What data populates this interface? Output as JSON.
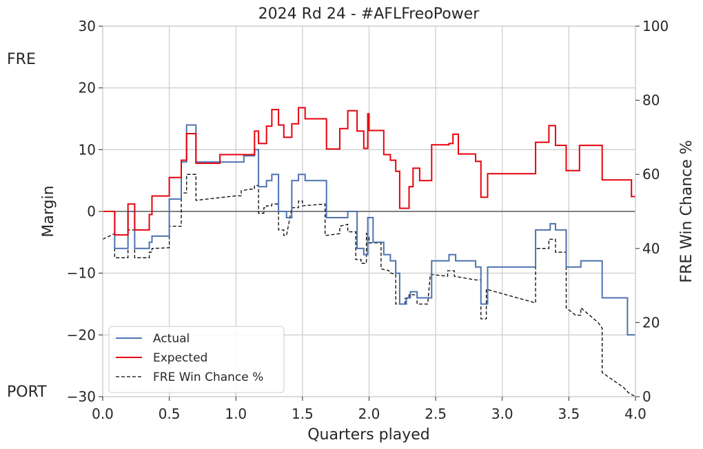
{
  "chart_data": {
    "type": "line",
    "title": "2024 Rd 24 - #AFLFreoPower",
    "xlabel": "Quarters played",
    "ylabel": "Margin",
    "y2label": "FRE Win Chance %",
    "top_team_label": "FRE",
    "bottom_team_label": "PORT",
    "xlim": [
      0,
      4
    ],
    "ylim": [
      -30,
      30
    ],
    "y2lim": [
      0,
      100
    ],
    "x_ticks": [
      "0.0",
      "0.5",
      "1.0",
      "1.5",
      "2.0",
      "2.5",
      "3.0",
      "3.5",
      "4.0"
    ],
    "y_ticks": [
      "30",
      "20",
      "10",
      "0",
      "−10",
      "−20",
      "−30"
    ],
    "y2_ticks": [
      "100",
      "80",
      "60",
      "40",
      "20",
      "0"
    ],
    "grid": true,
    "legend_placement": "lower-left",
    "series": [
      {
        "name": "Actual",
        "axis": "left",
        "style": "step",
        "color": "#4c72b0",
        "points": [
          [
            0,
            0
          ],
          [
            0.09,
            -6
          ],
          [
            0.19,
            0
          ],
          [
            0.24,
            -6
          ],
          [
            0.35,
            -5
          ],
          [
            0.37,
            -4
          ],
          [
            0.5,
            2
          ],
          [
            0.59,
            8
          ],
          [
            0.63,
            14
          ],
          [
            0.7,
            8
          ],
          [
            1.0,
            8
          ],
          [
            1.06,
            9
          ],
          [
            1.14,
            10
          ],
          [
            1.17,
            4
          ],
          [
            1.23,
            5
          ],
          [
            1.27,
            6
          ],
          [
            1.32,
            0
          ],
          [
            1.38,
            -1
          ],
          [
            1.42,
            5
          ],
          [
            1.47,
            6
          ],
          [
            1.52,
            5
          ],
          [
            1.68,
            -1
          ],
          [
            1.84,
            0
          ],
          [
            1.91,
            -6
          ],
          [
            1.96,
            -7
          ],
          [
            1.99,
            -1
          ],
          [
            2.03,
            -5
          ],
          [
            2.11,
            -7
          ],
          [
            2.16,
            -8
          ],
          [
            2.2,
            -10
          ],
          [
            2.23,
            -15
          ],
          [
            2.28,
            -14
          ],
          [
            2.31,
            -13
          ],
          [
            2.36,
            -14
          ],
          [
            2.47,
            -8
          ],
          [
            2.6,
            -7
          ],
          [
            2.65,
            -8
          ],
          [
            2.8,
            -9
          ],
          [
            2.84,
            -15
          ],
          [
            2.89,
            -9
          ],
          [
            3.25,
            -3
          ],
          [
            3.36,
            -2
          ],
          [
            3.4,
            -3
          ],
          [
            3.48,
            -9
          ],
          [
            3.59,
            -8
          ],
          [
            3.75,
            -14
          ],
          [
            3.94,
            -20
          ],
          [
            4.0,
            -20
          ]
        ]
      },
      {
        "name": "Expected",
        "axis": "left",
        "style": "step",
        "color": "#e8000b",
        "points": [
          [
            0,
            0
          ],
          [
            0.09,
            -3.8
          ],
          [
            0.19,
            1.2
          ],
          [
            0.24,
            -3
          ],
          [
            0.35,
            -0.5
          ],
          [
            0.37,
            2.5
          ],
          [
            0.5,
            5.5
          ],
          [
            0.59,
            8.3
          ],
          [
            0.63,
            12.6
          ],
          [
            0.7,
            7.8
          ],
          [
            0.88,
            9.2
          ],
          [
            1.14,
            13
          ],
          [
            1.17,
            11
          ],
          [
            1.23,
            13.8
          ],
          [
            1.27,
            16.5
          ],
          [
            1.32,
            14
          ],
          [
            1.36,
            12
          ],
          [
            1.42,
            14.2
          ],
          [
            1.47,
            16.8
          ],
          [
            1.52,
            15
          ],
          [
            1.68,
            10.1
          ],
          [
            1.78,
            13.4
          ],
          [
            1.84,
            16.3
          ],
          [
            1.91,
            13
          ],
          [
            1.96,
            10.2
          ],
          [
            1.99,
            15.8
          ],
          [
            2.0,
            13.1
          ],
          [
            2.11,
            9.2
          ],
          [
            2.16,
            8.3
          ],
          [
            2.2,
            6.5
          ],
          [
            2.23,
            0.5
          ],
          [
            2.3,
            4
          ],
          [
            2.33,
            7
          ],
          [
            2.38,
            5
          ],
          [
            2.47,
            10.8
          ],
          [
            2.6,
            11
          ],
          [
            2.63,
            12.5
          ],
          [
            2.67,
            9.3
          ],
          [
            2.8,
            8.1
          ],
          [
            2.84,
            2.3
          ],
          [
            2.89,
            6.1
          ],
          [
            3.25,
            11.2
          ],
          [
            3.35,
            13.9
          ],
          [
            3.4,
            10.7
          ],
          [
            3.48,
            6.6
          ],
          [
            3.58,
            10.7
          ],
          [
            3.75,
            5.1
          ],
          [
            3.97,
            2.4
          ],
          [
            4.0,
            2.4
          ]
        ]
      },
      {
        "name": "FRE Win Chance %",
        "axis": "right",
        "style": "line",
        "dash": "dashed",
        "color": "#000000",
        "points": [
          [
            0,
            42.5
          ],
          [
            0.09,
            44
          ],
          [
            0.09,
            37.5
          ],
          [
            0.19,
            37.5
          ],
          [
            0.19,
            45
          ],
          [
            0.24,
            45
          ],
          [
            0.24,
            37.5
          ],
          [
            0.35,
            37.5
          ],
          [
            0.35,
            39
          ],
          [
            0.37,
            39
          ],
          [
            0.37,
            40
          ],
          [
            0.5,
            40.2
          ],
          [
            0.5,
            46
          ],
          [
            0.59,
            46
          ],
          [
            0.59,
            55
          ],
          [
            0.63,
            55
          ],
          [
            0.63,
            60
          ],
          [
            0.7,
            60
          ],
          [
            0.7,
            53
          ],
          [
            1.0,
            54.2
          ],
          [
            1.04,
            54.2
          ],
          [
            1.04,
            55.6
          ],
          [
            1.11,
            56
          ],
          [
            1.14,
            56
          ],
          [
            1.14,
            57
          ],
          [
            1.17,
            57
          ],
          [
            1.17,
            49.5
          ],
          [
            1.21,
            49.5
          ],
          [
            1.21,
            51
          ],
          [
            1.23,
            51
          ],
          [
            1.23,
            51.5
          ],
          [
            1.27,
            51.5
          ],
          [
            1.27,
            52
          ],
          [
            1.32,
            52
          ],
          [
            1.32,
            45
          ],
          [
            1.36,
            45
          ],
          [
            1.36,
            43.5
          ],
          [
            1.38,
            43.5
          ],
          [
            1.42,
            51
          ],
          [
            1.47,
            51
          ],
          [
            1.47,
            52.8
          ],
          [
            1.5,
            52.8
          ],
          [
            1.5,
            51.5
          ],
          [
            1.67,
            52
          ],
          [
            1.67,
            43.5
          ],
          [
            1.78,
            44
          ],
          [
            1.78,
            46
          ],
          [
            1.84,
            46.5
          ],
          [
            1.84,
            44.5
          ],
          [
            1.9,
            44.5
          ],
          [
            1.9,
            37
          ],
          [
            1.94,
            37
          ],
          [
            1.94,
            36
          ],
          [
            1.98,
            36
          ],
          [
            1.98,
            44
          ],
          [
            2.0,
            43
          ],
          [
            2.0,
            41.5
          ],
          [
            2.09,
            41.5
          ],
          [
            2.09,
            34.5
          ],
          [
            2.15,
            34
          ],
          [
            2.15,
            33.5
          ],
          [
            2.2,
            33
          ],
          [
            2.2,
            25
          ],
          [
            2.27,
            25
          ],
          [
            2.27,
            26.5
          ],
          [
            2.3,
            26.5
          ],
          [
            2.3,
            27.5
          ],
          [
            2.36,
            27.5
          ],
          [
            2.36,
            25
          ],
          [
            2.44,
            25
          ],
          [
            2.46,
            33
          ],
          [
            2.59,
            32.5
          ],
          [
            2.59,
            34
          ],
          [
            2.64,
            34
          ],
          [
            2.64,
            32.5
          ],
          [
            2.8,
            31.5
          ],
          [
            2.84,
            31.5
          ],
          [
            2.84,
            21
          ],
          [
            2.88,
            21
          ],
          [
            2.88,
            29
          ],
          [
            3.0,
            27.8
          ],
          [
            3.25,
            25.3
          ],
          [
            3.25,
            40
          ],
          [
            3.35,
            40
          ],
          [
            3.35,
            42.5
          ],
          [
            3.4,
            42.5
          ],
          [
            3.4,
            39
          ],
          [
            3.48,
            39
          ],
          [
            3.48,
            24
          ],
          [
            3.55,
            22
          ],
          [
            3.59,
            22
          ],
          [
            3.59,
            24
          ],
          [
            3.72,
            20
          ],
          [
            3.75,
            18.5
          ],
          [
            3.75,
            6.5
          ],
          [
            3.85,
            4
          ],
          [
            3.91,
            2.5
          ],
          [
            3.95,
            1
          ],
          [
            4.0,
            0
          ]
        ]
      }
    ]
  }
}
